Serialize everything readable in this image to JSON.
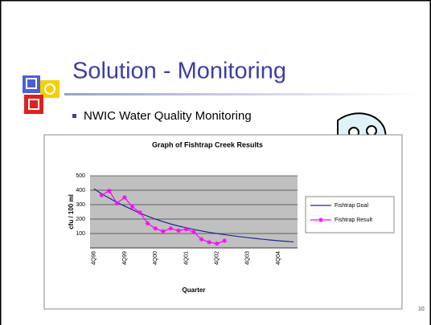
{
  "slide": {
    "title": "Solution - Monitoring",
    "bullet": "NWIC Water Quality Monitoring",
    "page_number": "10"
  },
  "chart_data": {
    "type": "line",
    "title": "Graph of Fishtrap Creek Results",
    "x_label": "Quarter",
    "y_label": "cfu / 100 ml",
    "categories": [
      "4Q98",
      null,
      null,
      null,
      "4Q99",
      null,
      null,
      null,
      "4Q00",
      null,
      null,
      null,
      "4Q01",
      null,
      null,
      null,
      "4Q02",
      null,
      null,
      null,
      "4Q03",
      null,
      null,
      null,
      "4Q04",
      null,
      null
    ],
    "series": [
      {
        "name": "Fishtrap Goal",
        "color": "#1f2a8a",
        "values": [
          410,
          375,
          345,
          315,
          290,
          265,
          240,
          220,
          200,
          182,
          166,
          152,
          140,
          128,
          118,
          108,
          100,
          92,
          85,
          78,
          72,
          66,
          60,
          55,
          50,
          46,
          42
        ]
      },
      {
        "name": "Fishtrap Result",
        "color": "#ff00ff",
        "values": [
          null,
          365,
          395,
          310,
          350,
          285,
          245,
          170,
          135,
          115,
          135,
          120,
          130,
          110,
          60,
          40,
          30,
          50,
          null,
          null,
          null,
          null,
          null,
          null,
          null,
          null,
          null
        ]
      }
    ],
    "ylim": [
      0,
      500
    ],
    "yticks": [
      100,
      200,
      300,
      400,
      500
    ],
    "grid": true,
    "legend": "right"
  }
}
